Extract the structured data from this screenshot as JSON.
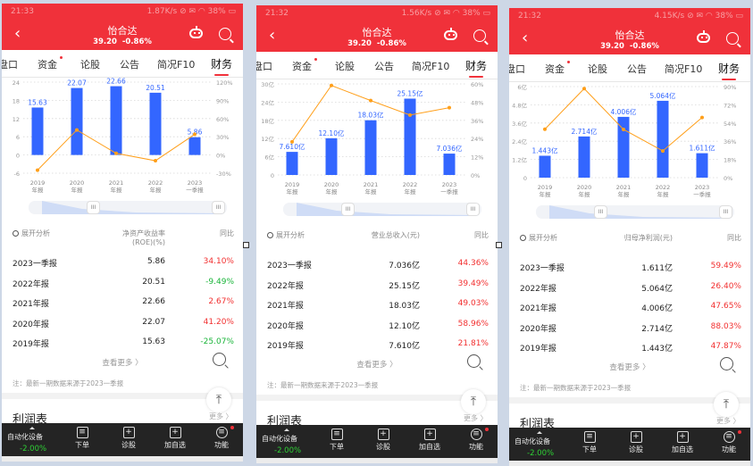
{
  "panels": [
    {
      "status": {
        "time": "21:33",
        "right": "1.87K/s ⊘ ✉ ◠ 38% ▭"
      },
      "header": {
        "title": "怡合达",
        "price": "39.20",
        "change": "-0.86%"
      },
      "tabs": [
        "盘口",
        "资金",
        "论股",
        "公告",
        "简况F10",
        "财务"
      ],
      "active_tab": 5,
      "table": {
        "analysis_label": "展开分析",
        "metric_header": "净资产收益率(ROE)(%)",
        "yoy_header": "同比",
        "rows": [
          {
            "period": "2023一季报",
            "value": "5.86",
            "yoy": "34.10%",
            "trend": "up"
          },
          {
            "period": "2022年报",
            "value": "20.51",
            "yoy": "-9.49%",
            "trend": "down"
          },
          {
            "period": "2021年报",
            "value": "22.66",
            "yoy": "2.67%",
            "trend": "up"
          },
          {
            "period": "2020年报",
            "value": "22.07",
            "yoy": "41.20%",
            "trend": "up"
          },
          {
            "period": "2019年报",
            "value": "15.63",
            "yoy": "-25.07%",
            "trend": "down"
          }
        ]
      },
      "more_label": "查看更多 〉",
      "note": "注：最新一期数据来源于2023一季报",
      "section_title": "利润表",
      "section_more": "更多 〉",
      "nav": {
        "stock": "自动化设备",
        "stock_change": "-2.00%",
        "items": [
          "下单",
          "诊股",
          "加自选",
          "功能"
        ]
      }
    },
    {
      "status": {
        "time": "21:32",
        "right": "1.56K/s ⊘ ✉ ◠ 38% ▭"
      },
      "header": {
        "title": "怡合达",
        "price": "39.20",
        "change": "-0.86%"
      },
      "tabs": [
        "盘口",
        "资金",
        "论股",
        "公告",
        "简况F10",
        "财务"
      ],
      "active_tab": 5,
      "table": {
        "analysis_label": "展开分析",
        "metric_header": "营业总收入(元)",
        "yoy_header": "同比",
        "rows": [
          {
            "period": "2023一季报",
            "value": "7.036亿",
            "yoy": "44.36%",
            "trend": "up"
          },
          {
            "period": "2022年报",
            "value": "25.15亿",
            "yoy": "39.49%",
            "trend": "up"
          },
          {
            "period": "2021年报",
            "value": "18.03亿",
            "yoy": "49.03%",
            "trend": "up"
          },
          {
            "period": "2020年报",
            "value": "12.10亿",
            "yoy": "58.96%",
            "trend": "up"
          },
          {
            "period": "2019年报",
            "value": "7.610亿",
            "yoy": "21.81%",
            "trend": "up"
          }
        ]
      },
      "more_label": "查看更多 〉",
      "note": "注：最新一期数据来源于2023一季报",
      "section_title": "利润表",
      "section_more": "更多 〉",
      "nav": {
        "stock": "自动化设备",
        "stock_change": "-2.00%",
        "items": [
          "下单",
          "诊股",
          "加自选",
          "功能"
        ]
      }
    },
    {
      "status": {
        "time": "21:32",
        "right": "4.15K/s ⊘ ✉ ◠ 38% ▭"
      },
      "header": {
        "title": "怡合达",
        "price": "39.20",
        "change": "-0.86%"
      },
      "tabs": [
        "盘口",
        "资金",
        "论股",
        "公告",
        "简况F10",
        "财务"
      ],
      "active_tab": 5,
      "table": {
        "analysis_label": "展开分析",
        "metric_header": "归母净利润(元)",
        "yoy_header": "同比",
        "rows": [
          {
            "period": "2023一季报",
            "value": "1.611亿",
            "yoy": "59.49%",
            "trend": "up"
          },
          {
            "period": "2022年报",
            "value": "5.064亿",
            "yoy": "26.40%",
            "trend": "up"
          },
          {
            "period": "2021年报",
            "value": "4.006亿",
            "yoy": "47.65%",
            "trend": "up"
          },
          {
            "period": "2020年报",
            "value": "2.714亿",
            "yoy": "88.03%",
            "trend": "up"
          },
          {
            "period": "2019年报",
            "value": "1.443亿",
            "yoy": "47.87%",
            "trend": "up"
          }
        ]
      },
      "more_label": "查看更多 〉",
      "note": "注：最新一期数据来源于2023一季报",
      "section_title": "利润表",
      "section_more": "更多 〉",
      "nav": {
        "stock": "自动化设备",
        "stock_change": "-2.00%",
        "items": [
          "下单",
          "诊股",
          "加自选",
          "功能"
        ]
      }
    }
  ],
  "colors": {
    "brand": "#f0313a",
    "bar": "#3366ff",
    "line": "#ff9f1a",
    "up": "#f23030",
    "down": "#1ab53a"
  },
  "chart_data": [
    {
      "type": "bar",
      "categories": [
        "2019\n年报",
        "2020\n年报",
        "2021\n年报",
        "2022\n年报",
        "2023\n一季报"
      ],
      "values": [
        15.63,
        22.07,
        22.66,
        20.51,
        5.86
      ],
      "value_labels": [
        "15.63",
        "22.07",
        "22.66",
        "20.51",
        "5.86"
      ],
      "ylim": [
        -6,
        24
      ],
      "yticks": [
        "24",
        "18",
        "12",
        "6",
        "0",
        "-6"
      ],
      "y2lim": [
        -30,
        120
      ],
      "y2ticks": [
        "120%",
        "90%",
        "60%",
        "30%",
        "0%",
        "-30%"
      ],
      "line_values": [
        -25.07,
        41.2,
        2.67,
        -9.49,
        34.1
      ],
      "grid": true
    },
    {
      "type": "bar",
      "categories": [
        "2019\n年报",
        "2020\n年报",
        "2021\n年报",
        "2022\n年报",
        "2023\n一季报"
      ],
      "values": [
        7.61,
        12.1,
        18.03,
        25.15,
        7.036
      ],
      "value_labels": [
        "7.610亿",
        "12.10亿",
        "18.03亿",
        "25.15亿",
        "7.036亿"
      ],
      "ylim": [
        0,
        30
      ],
      "yticks": [
        "30亿",
        "24亿",
        "18亿",
        "12亿",
        "6亿",
        "0"
      ],
      "y2lim": [
        0,
        60
      ],
      "y2ticks": [
        "60%",
        "48%",
        "36%",
        "24%",
        "12%",
        "0%"
      ],
      "line_values": [
        21.81,
        58.96,
        49.03,
        39.49,
        44.36
      ],
      "grid": true
    },
    {
      "type": "bar",
      "categories": [
        "2019\n年报",
        "2020\n年报",
        "2021\n年报",
        "2022\n年报",
        "2023\n一季报"
      ],
      "values": [
        1.443,
        2.714,
        4.006,
        5.064,
        1.611
      ],
      "value_labels": [
        "1.443亿",
        "2.714亿",
        "4.006亿",
        "5.064亿",
        "1.611亿"
      ],
      "ylim": [
        0,
        6
      ],
      "yticks": [
        "6亿",
        "4.8亿",
        "3.6亿",
        "2.4亿",
        "1.2亿",
        "0"
      ],
      "y2lim": [
        0,
        90
      ],
      "y2ticks": [
        "90%",
        "72%",
        "54%",
        "36%",
        "18%",
        "0%"
      ],
      "line_values": [
        47.87,
        88.03,
        47.65,
        26.4,
        59.49
      ],
      "grid": true
    }
  ]
}
